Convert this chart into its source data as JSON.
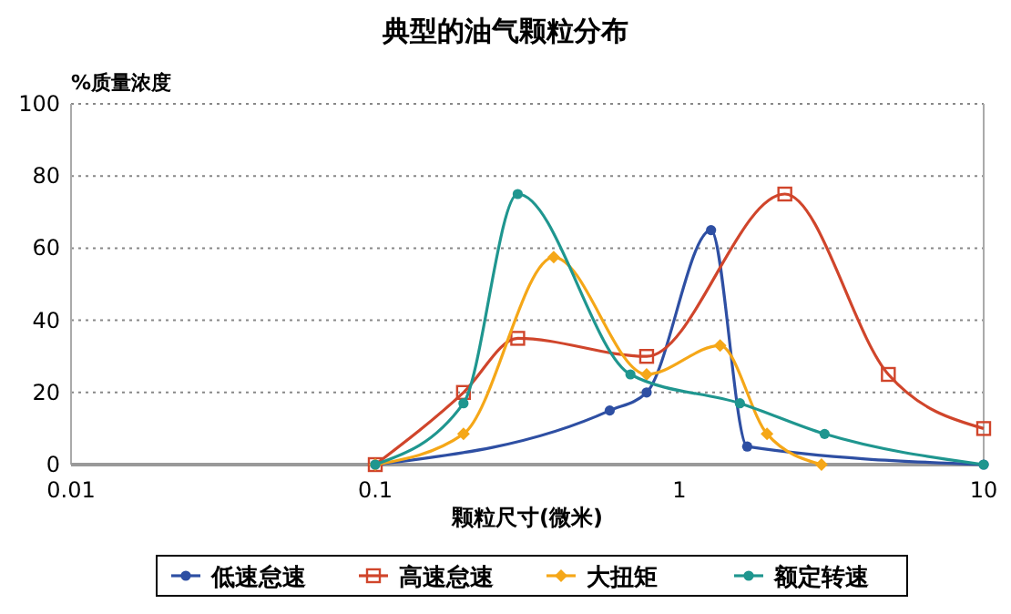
{
  "chart_data": {
    "type": "line",
    "title": "典型的油气颗粒分布",
    "xlabel": "颗粒尺寸(微米)",
    "ylabel": "%质量浓度",
    "log": "x",
    "xlim": [
      0.01,
      10
    ],
    "xticks": [
      0.01,
      0.1,
      1,
      10
    ],
    "ylim": [
      0,
      100
    ],
    "yticks": [
      0,
      20,
      40,
      60,
      80,
      100
    ],
    "grid": "y",
    "legend": "bottom",
    "line_style": "solid",
    "series": [
      {
        "name": "低速怠速",
        "color": "#2e4fa3",
        "marker": "circle",
        "x": [
          0.1,
          0.59,
          0.78,
          1.27,
          1.67,
          10
        ],
        "values": [
          0,
          15,
          20,
          65,
          5,
          0
        ]
      },
      {
        "name": "高速怠速",
        "color": "#d0452b",
        "marker": "square",
        "x": [
          0.1,
          0.195,
          0.294,
          0.78,
          2.22,
          4.86,
          10
        ],
        "values": [
          0,
          20,
          35,
          30,
          75,
          25,
          10
        ]
      },
      {
        "name": "大扭矩",
        "color": "#f5a718",
        "marker": "diamond",
        "x": [
          0.1,
          0.195,
          0.386,
          0.78,
          1.36,
          1.94,
          2.93
        ],
        "values": [
          0,
          8.5,
          57.5,
          25,
          33,
          8.5,
          0
        ]
      },
      {
        "name": "额定转速",
        "color": "#1f968f",
        "marker": "circle",
        "x": [
          0.1,
          0.195,
          0.294,
          0.69,
          1.58,
          3.0,
          10
        ],
        "values": [
          0,
          17,
          75,
          25,
          17,
          8.5,
          0
        ]
      }
    ]
  }
}
